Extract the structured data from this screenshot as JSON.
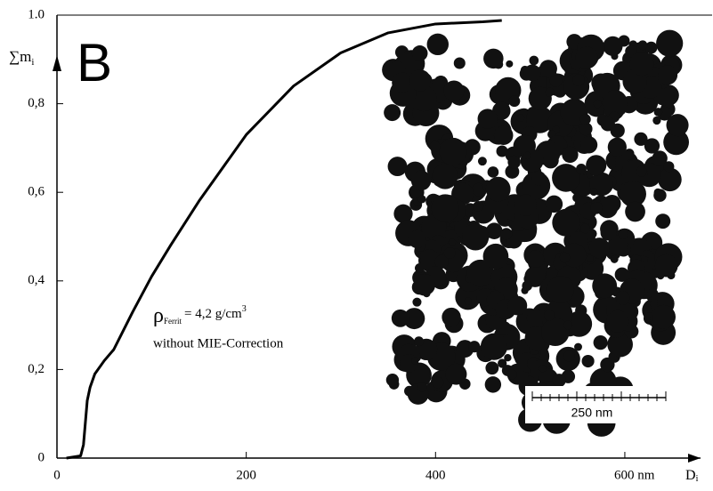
{
  "chart_data": {
    "type": "line",
    "panel_label": "B",
    "y_label": "∑m",
    "y_label_sub": "i",
    "x_label": "D",
    "x_label_sub": "i",
    "annotation": {
      "rho": "ρ",
      "rho_sub": "Ferrit",
      "rest": "= 4,2 g/cm",
      "sup": "3",
      "line2": "without MIE-Correction"
    },
    "scale_bar": "250 nm",
    "color": "#000000",
    "x": [
      10,
      25,
      28,
      30,
      32,
      35,
      40,
      50,
      60,
      80,
      100,
      120,
      150,
      200,
      250,
      300,
      350,
      400,
      450,
      470
    ],
    "values": [
      0,
      0.005,
      0.03,
      0.08,
      0.13,
      0.16,
      0.19,
      0.22,
      0.245,
      0.33,
      0.41,
      0.48,
      0.58,
      0.73,
      0.84,
      0.915,
      0.96,
      0.98,
      0.985,
      0.988
    ],
    "xlim": [
      0,
      680
    ],
    "ylim": [
      0,
      1
    ],
    "xticks": [
      0,
      200,
      400,
      {
        "value": 600,
        "label": "600 nm"
      }
    ],
    "yticks": [
      0,
      {
        "value": 0.2,
        "label": "0,2"
      },
      {
        "value": 0.4,
        "label": "0,4"
      },
      {
        "value": 0.6,
        "label": "0,6"
      },
      {
        "value": 0.8,
        "label": "0,8"
      },
      {
        "value": 1,
        "label": "1.0"
      }
    ]
  }
}
